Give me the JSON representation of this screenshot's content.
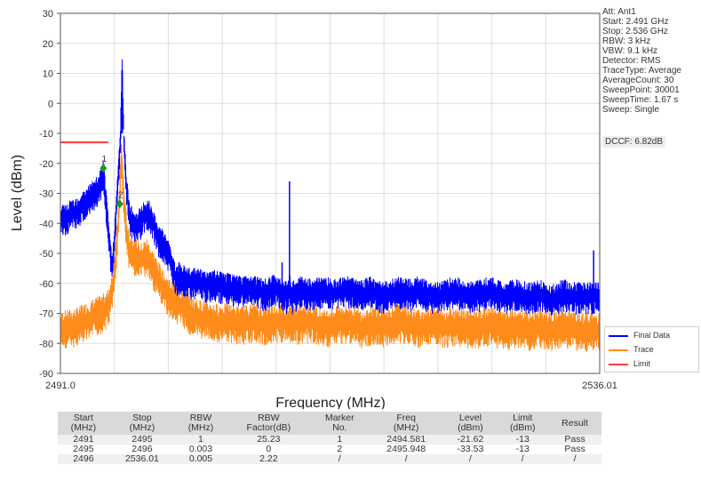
{
  "chart_data": {
    "type": "line",
    "xlabel": "Frequency (MHz)",
    "ylabel": "Level (dBm)",
    "xlim": [
      2491.0,
      2536.01
    ],
    "ylim": [
      -90,
      30
    ],
    "x_tick_labels": [
      "2491.0",
      "2536.01"
    ],
    "y_ticks": [
      30,
      20,
      10,
      0,
      -10,
      -20,
      -30,
      -40,
      -50,
      -60,
      -70,
      -80,
      -90
    ],
    "grid": true,
    "legend_position": "bottom-right",
    "series": [
      {
        "name": "Final Data",
        "color": "#0000ff",
        "points": [
          [
            2491.0,
            -38
          ],
          [
            2491.5,
            -38
          ],
          [
            2492.0,
            -36
          ],
          [
            2492.5,
            -35
          ],
          [
            2493.0,
            -33
          ],
          [
            2493.5,
            -31
          ],
          [
            2494.0,
            -29
          ],
          [
            2494.4,
            -26
          ],
          [
            2494.58,
            -22
          ],
          [
            2495.0,
            -42
          ],
          [
            2495.3,
            -55
          ],
          [
            2495.6,
            -40
          ],
          [
            2495.8,
            -25
          ],
          [
            2496.0,
            -12
          ],
          [
            2496.15,
            11
          ],
          [
            2496.3,
            -12
          ],
          [
            2496.5,
            -27
          ],
          [
            2496.8,
            -38
          ],
          [
            2497.2,
            -40
          ],
          [
            2497.6,
            -40
          ],
          [
            2498.0,
            -37
          ],
          [
            2498.4,
            -36
          ],
          [
            2498.8,
            -40
          ],
          [
            2499.2,
            -45
          ],
          [
            2499.7,
            -47
          ],
          [
            2500.2,
            -52
          ],
          [
            2500.6,
            -58
          ],
          [
            2501.0,
            -58
          ],
          [
            2502.0,
            -59
          ],
          [
            2503.0,
            -60
          ],
          [
            2504.0,
            -60
          ],
          [
            2505.0,
            -61
          ],
          [
            2506.0,
            -62
          ],
          [
            2507.0,
            -61
          ],
          [
            2508.0,
            -63
          ],
          [
            2509.0,
            -61
          ],
          [
            2509.9,
            -64
          ],
          [
            2510.1,
            -60
          ],
          [
            2510.3,
            -64
          ],
          [
            2511.0,
            -62
          ],
          [
            2512.0,
            -63
          ],
          [
            2513.0,
            -62
          ],
          [
            2514.0,
            -63
          ],
          [
            2515.0,
            -62
          ],
          [
            2516.0,
            -63
          ],
          [
            2517.0,
            -62
          ],
          [
            2518.0,
            -64
          ],
          [
            2519.0,
            -62
          ],
          [
            2520.0,
            -63
          ],
          [
            2521.0,
            -62
          ],
          [
            2522.0,
            -64
          ],
          [
            2523.0,
            -63
          ],
          [
            2524.0,
            -62
          ],
          [
            2525.0,
            -64
          ],
          [
            2526.0,
            -63
          ],
          [
            2527.0,
            -62
          ],
          [
            2528.0,
            -64
          ],
          [
            2529.0,
            -63
          ],
          [
            2530.0,
            -64
          ],
          [
            2531.0,
            -63
          ],
          [
            2532.0,
            -65
          ],
          [
            2533.0,
            -63
          ],
          [
            2534.0,
            -64
          ],
          [
            2535.0,
            -64
          ],
          [
            2536.01,
            -64
          ]
        ],
        "spikes": [
          [
            2497.6,
            -35
          ],
          [
            2500.9,
            -53
          ],
          [
            2509.5,
            -53
          ],
          [
            2510.12,
            -26
          ],
          [
            2535.5,
            -49
          ]
        ]
      },
      {
        "name": "Trace",
        "color": "#ff8c1a",
        "points": [
          [
            2491.0,
            -75
          ],
          [
            2491.5,
            -74
          ],
          [
            2492.0,
            -74
          ],
          [
            2492.5,
            -73
          ],
          [
            2493.0,
            -72
          ],
          [
            2493.5,
            -71
          ],
          [
            2494.0,
            -70
          ],
          [
            2494.5,
            -69
          ],
          [
            2495.0,
            -67
          ],
          [
            2495.3,
            -62
          ],
          [
            2495.6,
            -52
          ],
          [
            2495.85,
            -38
          ],
          [
            2496.0,
            -25
          ],
          [
            2496.1,
            -16
          ],
          [
            2496.2,
            -25
          ],
          [
            2496.4,
            -38
          ],
          [
            2496.7,
            -48
          ],
          [
            2497.2,
            -50
          ],
          [
            2497.7,
            -52
          ],
          [
            2498.2,
            -50
          ],
          [
            2498.7,
            -54
          ],
          [
            2499.2,
            -58
          ],
          [
            2499.7,
            -62
          ],
          [
            2500.2,
            -64
          ],
          [
            2500.8,
            -66
          ],
          [
            2502.0,
            -70
          ],
          [
            2503.0,
            -71
          ],
          [
            2504.0,
            -72
          ],
          [
            2505.0,
            -72
          ],
          [
            2506.0,
            -73
          ],
          [
            2507.0,
            -72
          ],
          [
            2508.0,
            -73
          ],
          [
            2509.0,
            -72
          ],
          [
            2510.0,
            -72
          ],
          [
            2511.0,
            -73
          ],
          [
            2512.0,
            -72
          ],
          [
            2513.0,
            -74
          ],
          [
            2514.0,
            -73
          ],
          [
            2515.0,
            -72
          ],
          [
            2516.0,
            -74
          ],
          [
            2517.0,
            -73
          ],
          [
            2518.0,
            -74
          ],
          [
            2519.0,
            -72
          ],
          [
            2520.0,
            -73
          ],
          [
            2521.0,
            -74
          ],
          [
            2522.0,
            -73
          ],
          [
            2523.0,
            -74
          ],
          [
            2524.0,
            -73
          ],
          [
            2525.0,
            -74
          ],
          [
            2526.0,
            -74
          ],
          [
            2527.0,
            -73
          ],
          [
            2528.0,
            -75
          ],
          [
            2529.0,
            -74
          ],
          [
            2530.0,
            -75
          ],
          [
            2531.0,
            -74
          ],
          [
            2532.0,
            -75
          ],
          [
            2533.0,
            -74
          ],
          [
            2534.0,
            -75
          ],
          [
            2535.0,
            -75
          ],
          [
            2536.01,
            -75
          ]
        ]
      },
      {
        "name": "Limit",
        "color": "#ff3b3b",
        "points": [
          [
            2491.0,
            -13
          ],
          [
            2495.0,
            -13
          ]
        ]
      }
    ],
    "markers": [
      {
        "label": "1",
        "x": 2494.581,
        "y": -21.62
      },
      {
        "label": "2",
        "x": 2495.948,
        "y": -33.53
      }
    ]
  },
  "settings": [
    "Att: Ant1",
    "Start: 2.491 GHz",
    "Stop: 2.536 GHz",
    "RBW: 3 kHz",
    "VBW: 9.1 kHz",
    "Detector: RMS",
    "TraceType: Average",
    "AverageCount: 30",
    "SweepPoint: 30001",
    "SweepTime: 1.67 s",
    "Sweep: Single"
  ],
  "dccf": "DCCF: 6.82dB",
  "table": {
    "headers": [
      [
        "Start",
        "(MHz)"
      ],
      [
        "Stop",
        "(MHz)"
      ],
      [
        "RBW",
        "(MHz)"
      ],
      [
        "RBW",
        "Factor(dB)"
      ],
      [
        "Marker",
        "No."
      ],
      [
        "Freq",
        "(MHz)"
      ],
      [
        "Level",
        "(dBm)"
      ],
      [
        "Limit",
        "(dBm)"
      ],
      [
        "Result",
        ""
      ]
    ],
    "rows": [
      [
        "2491",
        "2495",
        "1",
        "25.23",
        "1",
        "2494.581",
        "-21.62",
        "-13",
        "Pass"
      ],
      [
        "2495",
        "2496",
        "0.003",
        "0",
        "2",
        "2495.948",
        "-33.53",
        "-13",
        "Pass"
      ],
      [
        "2496",
        "2536.01",
        "0.005",
        "2.22",
        "/",
        "/",
        "/",
        "/",
        "/"
      ]
    ]
  }
}
